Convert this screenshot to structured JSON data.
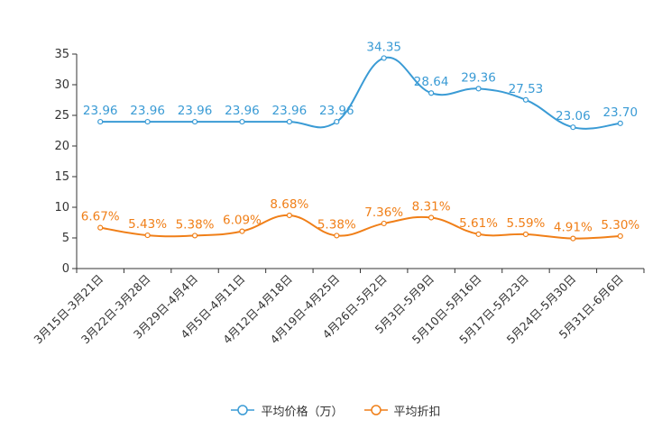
{
  "chart_data": {
    "type": "line",
    "title": "",
    "xlabel": "",
    "ylabel": "",
    "ylim": [
      0,
      35
    ],
    "yticks": [
      0,
      5,
      10,
      15,
      20,
      25,
      30,
      35
    ],
    "grid": false,
    "legend_position": "bottom",
    "categories": [
      "3月15日-3月21日",
      "3月22日-3月28日",
      "3月29日-4月4日",
      "4月5日-4月11日",
      "4月12日-4月18日",
      "4月19日-4月25日",
      "4月26日-5月2日",
      "5月3日-5月9日",
      "5月10日-5月16日",
      "5月17日-5月23日",
      "5月24日-5月30日",
      "5月31日-6月6日"
    ],
    "series": [
      {
        "name": "平均价格（万）",
        "color": "#3a9bd5",
        "values": [
          23.96,
          23.96,
          23.96,
          23.96,
          23.96,
          23.96,
          34.35,
          28.64,
          29.36,
          27.53,
          23.06,
          23.7
        ],
        "labels": [
          "23.96",
          "23.96",
          "23.96",
          "23.96",
          "23.96",
          "23.96",
          "34.35",
          "28.64",
          "29.36",
          "27.53",
          "23.06",
          "23.70"
        ]
      },
      {
        "name": "平均折扣",
        "color": "#f07f18",
        "values": [
          6.67,
          5.43,
          5.38,
          6.09,
          8.68,
          5.38,
          7.36,
          8.31,
          5.61,
          5.59,
          4.91,
          5.3
        ],
        "labels": [
          "6.67%",
          "5.43%",
          "5.38%",
          "6.09%",
          "8.68%",
          "5.38%",
          "7.36%",
          "8.31%",
          "5.61%",
          "5.59%",
          "4.91%",
          "5.30%"
        ]
      }
    ]
  }
}
